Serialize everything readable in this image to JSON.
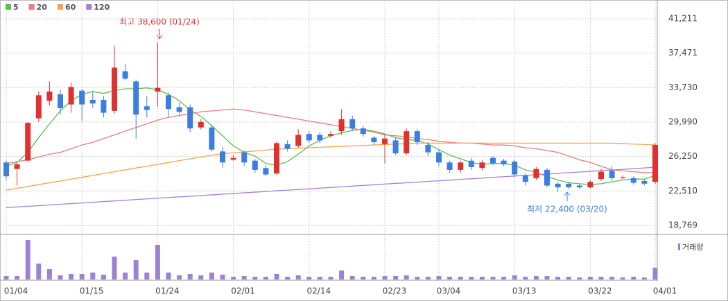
{
  "chart_data": [
    {
      "type": "candlestick",
      "categories": [
        "01/04",
        null,
        null,
        null,
        null,
        null,
        null,
        "01/15",
        null,
        null,
        null,
        null,
        null,
        null,
        "01/24",
        null,
        null,
        null,
        null,
        null,
        null,
        "02/01",
        null,
        null,
        null,
        null,
        null,
        null,
        "02/14",
        null,
        null,
        null,
        null,
        null,
        null,
        "02/23",
        null,
        null,
        null,
        null,
        "03/04",
        null,
        null,
        null,
        null,
        null,
        null,
        "03/13",
        null,
        null,
        null,
        null,
        null,
        null,
        "03/22",
        null,
        null,
        null,
        null,
        null,
        "04/01"
      ],
      "open": [
        25600,
        24900,
        25800,
        30400,
        32300,
        33000,
        31900,
        33400,
        32400,
        32400,
        31200,
        35500,
        34400,
        31700,
        33300,
        32900,
        31600,
        31600,
        29400,
        29400,
        26800,
        25900,
        26700,
        25800,
        25000,
        24400,
        27600,
        27400,
        28700,
        28600,
        28500,
        29000,
        30300,
        29300,
        28300,
        27600,
        28000,
        26600,
        29000,
        27500,
        26700,
        25600,
        24800,
        25800,
        25000,
        26100,
        25800,
        25700,
        24200,
        23900,
        24800,
        23300,
        23300,
        23100,
        22900,
        23800,
        24700,
        23900,
        23900,
        23600,
        23500
      ],
      "high": [
        25800,
        25600,
        30000,
        33300,
        34400,
        33500,
        34300,
        33600,
        33400,
        32800,
        38300,
        36300,
        34600,
        32800,
        38600,
        33200,
        32100,
        31900,
        30300,
        29700,
        27300,
        26400,
        26900,
        26000,
        25300,
        27900,
        28000,
        29200,
        29000,
        28900,
        29000,
        31400,
        30700,
        29600,
        28500,
        28600,
        28300,
        29300,
        29200,
        27800,
        27000,
        25800,
        25800,
        26100,
        25900,
        26300,
        26000,
        25900,
        24400,
        25100,
        25000,
        23500,
        23500,
        23300,
        23700,
        24900,
        25200,
        24200,
        24100,
        23800,
        27700
      ],
      "low": [
        23700,
        23100,
        25700,
        30000,
        31800,
        30800,
        31000,
        30100,
        31500,
        30500,
        30900,
        34500,
        28200,
        30500,
        31700,
        30500,
        30800,
        28900,
        29200,
        26800,
        25000,
        25800,
        25200,
        24500,
        24100,
        24300,
        26800,
        27200,
        27700,
        27700,
        28300,
        28600,
        29000,
        28400,
        27500,
        25500,
        26400,
        26400,
        27500,
        26300,
        25200,
        24500,
        24500,
        24800,
        24700,
        25300,
        25200,
        24000,
        23100,
        23700,
        22900,
        22400,
        22700,
        22700,
        22800,
        23600,
        23600,
        23800,
        23200,
        23100,
        23300
      ],
      "close": [
        24100,
        25400,
        29900,
        32900,
        33300,
        31500,
        33800,
        31900,
        32000,
        31000,
        35900,
        34700,
        30800,
        31300,
        33700,
        31400,
        31100,
        29300,
        30000,
        27000,
        25600,
        26100,
        25600,
        24800,
        24300,
        27700,
        27100,
        28600,
        28000,
        28000,
        28700,
        30300,
        29300,
        28700,
        27800,
        28200,
        26600,
        29000,
        27800,
        26700,
        25600,
        24800,
        25600,
        25100,
        25600,
        25500,
        25400,
        24300,
        23500,
        24900,
        23100,
        22900,
        22900,
        22900,
        23500,
        24600,
        23900,
        24000,
        23400,
        23300,
        27500
      ],
      "up_color": "#e0302f",
      "down_color": "#3a7ee0",
      "series": [
        {
          "name": "5",
          "color": "#5cbf4a",
          "values": [
            25200,
            25600,
            26700,
            28300,
            29800,
            31200,
            32300,
            33000,
            33300,
            33100,
            33400,
            33600,
            33600,
            33700,
            33500,
            33000,
            32300,
            31300,
            30600,
            29600,
            28500,
            27400,
            26700,
            26300,
            25500,
            25300,
            25700,
            26500,
            27400,
            28000,
            28500,
            28800,
            29100,
            29200,
            29000,
            28700,
            28300,
            28100,
            28000,
            27600,
            27000,
            26400,
            26000,
            25600,
            25400,
            25500,
            25500,
            25300,
            24800,
            24500,
            24100,
            23700,
            23400,
            23300,
            23200,
            23300,
            23500,
            23700,
            23800,
            23800,
            24200
          ]
        },
        {
          "name": "20",
          "color": "#f07c7c",
          "values": [
            25500,
            25700,
            25900,
            26200,
            26500,
            26700,
            27100,
            27500,
            27800,
            28200,
            28600,
            29000,
            29400,
            29800,
            30200,
            30500,
            30700,
            30900,
            31100,
            31200,
            31300,
            31400,
            31300,
            31100,
            30900,
            30700,
            30500,
            30300,
            30100,
            29900,
            29700,
            29500,
            29300,
            29100,
            28900,
            28600,
            28500,
            28400,
            28200,
            28100,
            27900,
            27800,
            27700,
            27700,
            27600,
            27500,
            27500,
            27400,
            27200,
            27100,
            26900,
            26700,
            26300,
            25900,
            25600,
            25200,
            24800,
            24700,
            24600,
            24500,
            24500
          ]
        },
        {
          "name": "60",
          "color": "#f5a34a",
          "values": [
            22600,
            22800,
            23000,
            23200,
            23400,
            23600,
            23800,
            24000,
            24200,
            24400,
            24600,
            24800,
            25000,
            25200,
            25400,
            25600,
            25800,
            26000,
            26200,
            26400,
            26550,
            26650,
            26750,
            26850,
            26950,
            27050,
            27100,
            27150,
            27200,
            27250,
            27300,
            27350,
            27400,
            27450,
            27500,
            27550,
            27600,
            27650,
            27700,
            27700,
            27700,
            27700,
            27700,
            27700,
            27700,
            27700,
            27700,
            27700,
            27700,
            27700,
            27700,
            27700,
            27700,
            27700,
            27700,
            27700,
            27700,
            27650,
            27600,
            27550,
            27500
          ]
        },
        {
          "name": "120",
          "color": "#a87fdc",
          "values": [
            20700,
            20770,
            20850,
            20920,
            20990,
            21070,
            21140,
            21210,
            21280,
            21360,
            21430,
            21500,
            21580,
            21650,
            21720,
            21800,
            21870,
            21940,
            22010,
            22090,
            22160,
            22230,
            22310,
            22380,
            22450,
            22530,
            22600,
            22670,
            22740,
            22820,
            22890,
            22960,
            23040,
            23110,
            23180,
            23260,
            23330,
            23400,
            23470,
            23550,
            23620,
            23690,
            23770,
            23840,
            23910,
            23990,
            24060,
            24130,
            24200,
            24280,
            24350,
            24420,
            24500,
            24570,
            24640,
            24720,
            24790,
            24860,
            24930,
            25010,
            25080
          ]
        }
      ],
      "ylim": [
        17793,
        43239
      ],
      "yticks": [
        {
          "value": 41211,
          "label": "41,211"
        },
        {
          "value": 37471,
          "label": "37,471"
        },
        {
          "value": 33730,
          "label": "33,730"
        },
        {
          "value": 29990,
          "label": "29,990"
        },
        {
          "value": 26250,
          "label": "26,250"
        },
        {
          "value": 22510,
          "label": "22,510"
        },
        {
          "value": 18769,
          "label": "18,769"
        }
      ],
      "grid": true,
      "annotations": [
        "최고 38,600 (01/24)",
        "최저 22,400 (03/20)"
      ]
    },
    {
      "type": "bar",
      "name": "거래량",
      "color": "#9b83d4",
      "values": [
        5,
        5,
        57,
        23,
        15,
        6,
        8,
        8,
        10,
        7,
        33,
        10,
        28,
        10,
        50,
        10,
        6,
        8,
        6,
        10,
        7,
        4,
        5,
        4,
        4,
        8,
        4,
        6,
        4,
        4,
        4,
        13,
        5,
        4,
        4,
        5,
        5,
        6,
        4,
        4,
        5,
        4,
        4,
        4,
        4,
        4,
        4,
        6,
        4,
        5,
        5,
        4,
        4,
        3,
        4,
        4,
        4,
        3,
        4,
        3,
        17
      ]
    }
  ]
}
